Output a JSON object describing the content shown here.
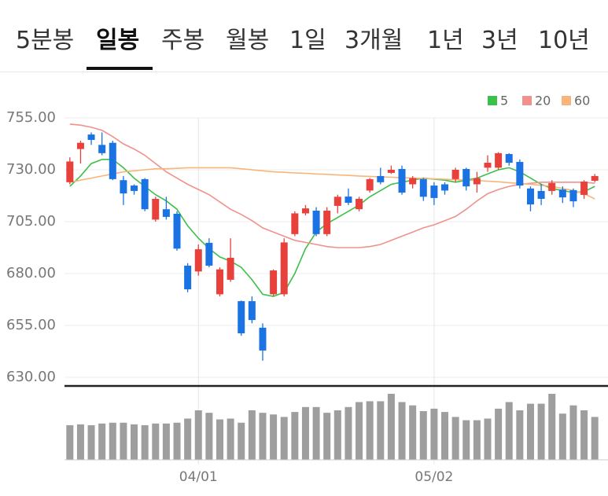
{
  "tabs": [
    "5분봉",
    "일봉",
    "주봉",
    "월봉",
    "1일",
    "3개월",
    "1년",
    "3년",
    "10년"
  ],
  "chart_data": {
    "type": "candlestick",
    "categories": [
      null,
      null,
      null,
      null,
      null,
      null,
      null,
      null,
      null,
      null,
      null,
      null,
      "04/01",
      null,
      null,
      null,
      null,
      null,
      null,
      null,
      null,
      null,
      null,
      null,
      null,
      null,
      null,
      null,
      null,
      null,
      null,
      null,
      null,
      null,
      "05/02",
      null,
      null,
      null,
      null,
      null,
      null,
      null,
      null,
      null,
      null,
      null,
      null,
      null,
      null,
      null
    ],
    "open": [
      724,
      740,
      747,
      742,
      743,
      725,
      722.4,
      725.5,
      706,
      711,
      708.8,
      683.8,
      681,
      694.8,
      670,
      677,
      666.7,
      666.7,
      653.9,
      670,
      670,
      699,
      709,
      710.3,
      699,
      712.6,
      717.1,
      711,
      720,
      727,
      728.5,
      730.4,
      723,
      725.5,
      722.4,
      723,
      725.5,
      730.4,
      723,
      731,
      731,
      737.6,
      733.8,
      721,
      719.8,
      719.8,
      720.5,
      720.2,
      717.9,
      724.7
    ],
    "high": [
      736,
      744,
      748,
      748,
      744,
      727,
      723,
      726,
      717,
      717,
      710,
      685,
      694,
      697,
      683,
      697,
      667,
      669,
      656,
      682,
      697,
      710,
      713,
      712,
      712,
      718,
      721,
      717,
      726,
      731,
      732,
      732,
      727,
      726,
      724,
      724,
      731,
      731,
      729,
      737,
      738.5,
      738,
      735,
      722,
      723,
      725,
      722,
      721,
      725,
      728
    ],
    "low": [
      723,
      733,
      742,
      737,
      725,
      713,
      718,
      710,
      705,
      706,
      691,
      671,
      679,
      683,
      669,
      676,
      650,
      656,
      638,
      669,
      669,
      698,
      708,
      698,
      698,
      709,
      713,
      710,
      719,
      723,
      728,
      718,
      721,
      715,
      713,
      718,
      724,
      720,
      719,
      729,
      730,
      732,
      721,
      710,
      713,
      718,
      714,
      712,
      716,
      724
    ],
    "close": [
      734,
      743,
      744.4,
      738,
      725.5,
      718.6,
      719.8,
      711,
      716,
      707.3,
      692,
      672.4,
      691.7,
      683.8,
      682,
      687.6,
      651.2,
      657.6,
      642.9,
      681.5,
      695,
      709,
      711.4,
      699,
      710.3,
      717,
      714.1,
      716,
      725.5,
      724,
      730,
      719,
      726,
      717,
      716.4,
      720,
      730,
      722,
      726,
      733.4,
      738,
      733.4,
      722.4,
      713.3,
      716,
      723.6,
      716.7,
      714.8,
      724.3,
      727
    ],
    "up_color": "#e8413c",
    "down_color": "#1b73e3",
    "ylim": [
      630,
      755
    ],
    "yticks": [
      {
        "value": 755,
        "label": "755.00"
      },
      {
        "value": 730,
        "label": "730.00"
      },
      {
        "value": 705,
        "label": "705.00"
      },
      {
        "value": 680,
        "label": "680.00"
      },
      {
        "value": 655,
        "label": "655.00"
      },
      {
        "value": 630,
        "label": "630.00"
      }
    ],
    "grid": true,
    "legend": "top-right",
    "series": [
      {
        "name": "5",
        "color": "#3cc04a",
        "values": [
          722,
          727,
          733,
          735,
          735,
          731,
          726,
          722,
          718,
          715,
          711,
          703,
          697,
          692,
          688,
          686,
          683,
          677,
          670,
          669,
          671,
          680,
          692,
          700,
          704,
          707,
          710,
          713,
          717,
          720,
          723,
          724,
          725,
          726,
          725.5,
          725,
          724,
          725,
          726,
          728,
          730,
          731,
          729,
          726,
          723,
          721,
          720,
          719,
          719.5,
          722
        ]
      },
      {
        "name": "20",
        "color": "#f0928c",
        "values": [
          752,
          751.5,
          750.5,
          749,
          746,
          742.5,
          740,
          737,
          733,
          729,
          726,
          723,
          720.5,
          718,
          714.5,
          711,
          708.5,
          705.5,
          702,
          700,
          698,
          696,
          695,
          694,
          693,
          692.5,
          692.5,
          692.5,
          693,
          694,
          696,
          698,
          700,
          702,
          703.5,
          705.5,
          707.5,
          711,
          715,
          718.5,
          720.5,
          722,
          723,
          723.5,
          724,
          724,
          724,
          724,
          724,
          723.5
        ]
      },
      {
        "name": "60",
        "color": "#f7b57a",
        "values": [
          724,
          725,
          726,
          727,
          728,
          729,
          729.5,
          730,
          730.5,
          730.5,
          730.7,
          731,
          731,
          731,
          731,
          731,
          730.5,
          730,
          729.5,
          729,
          728.8,
          728.5,
          728.3,
          728,
          727.8,
          727.5,
          727.3,
          727,
          726.8,
          726.6,
          726.4,
          726.2,
          726,
          725.8,
          725.6,
          725.4,
          725.2,
          725,
          724.8,
          724.5,
          724.2,
          723.8,
          723.4,
          723,
          722.5,
          722,
          721,
          720,
          718.5,
          716
        ]
      }
    ],
    "volume": {
      "color": "#9e9e9e",
      "values": [
        42,
        43,
        42,
        44,
        45,
        45,
        43,
        42,
        44,
        44,
        45,
        50,
        60,
        57,
        49,
        50,
        45,
        60,
        57,
        55,
        52,
        58,
        64,
        64,
        57,
        60,
        64,
        70,
        71,
        71,
        80,
        70,
        66,
        59,
        62,
        58,
        52,
        48,
        48,
        50,
        62,
        70,
        60,
        68,
        68,
        80,
        56,
        66,
        60,
        52
      ]
    }
  }
}
